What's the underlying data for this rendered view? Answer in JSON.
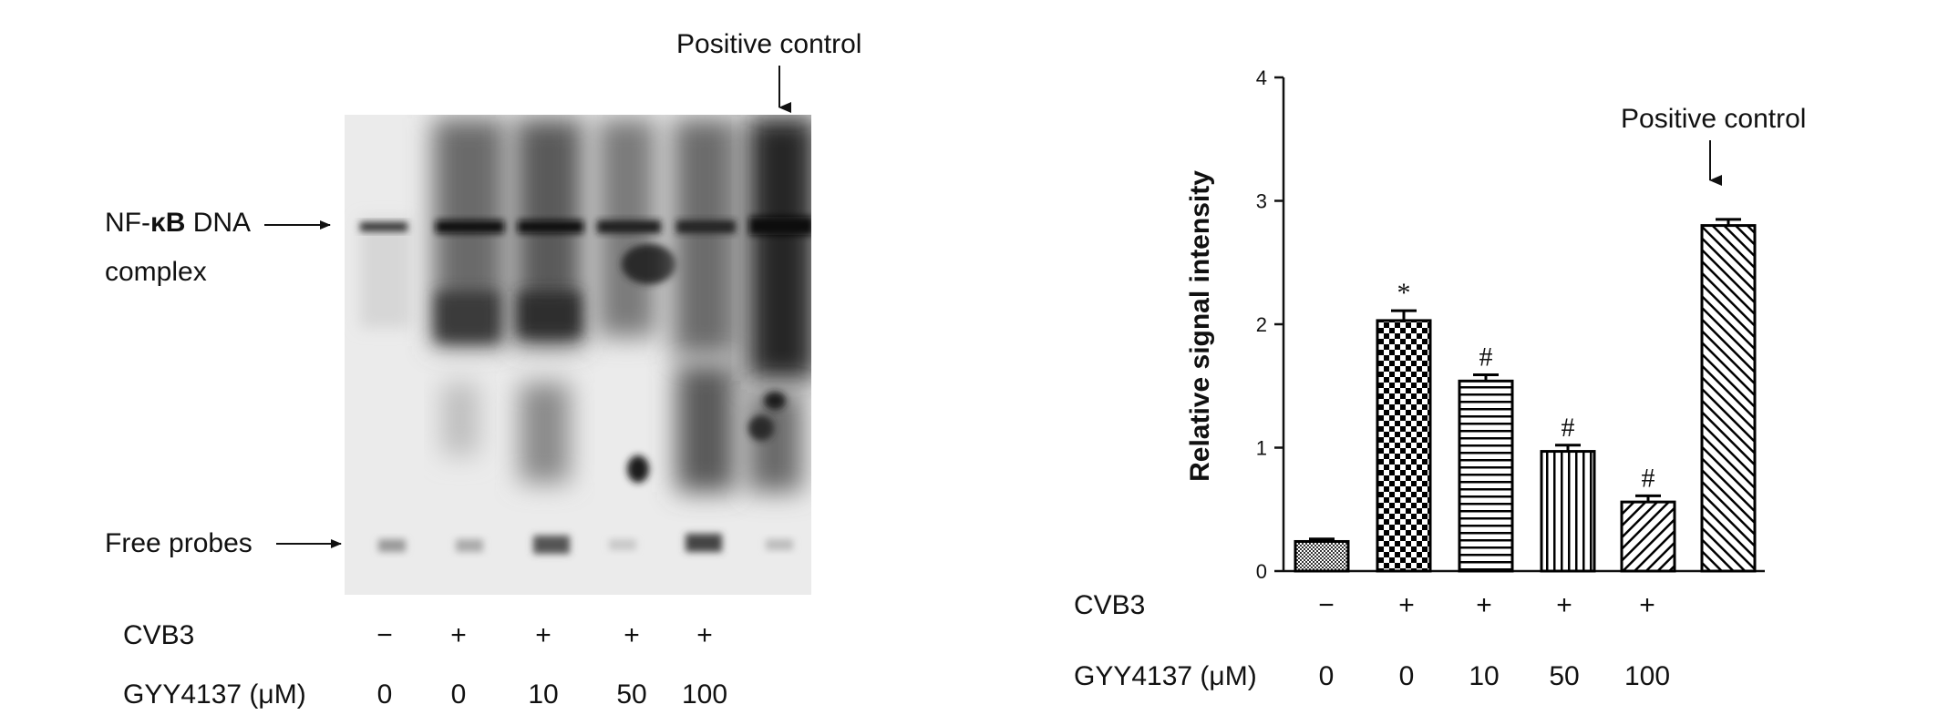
{
  "gel": {
    "positive_control_label": "Positive control",
    "nfkb_label_pre": "NF-",
    "nfkb_label_kappa": "κB",
    "nfkb_label_post": " DNA",
    "complex_label": "complex",
    "free_probes_label": "Free probes",
    "cvb3_label": "CVB3",
    "gyy_label": "GYY4137 (μM)",
    "cvb3_values": [
      "−",
      "+",
      "+",
      "+",
      "+",
      ""
    ],
    "gyy_values": [
      "0",
      "0",
      "10",
      "50",
      "100",
      ""
    ]
  },
  "chart_data": {
    "type": "bar",
    "categories": [
      "0",
      "0",
      "10",
      "50",
      "100",
      "Positive control"
    ],
    "values": [
      0.24,
      2.03,
      1.54,
      0.97,
      0.56,
      2.8
    ],
    "errors": [
      0.02,
      0.08,
      0.05,
      0.05,
      0.05,
      0.05
    ],
    "annotations": [
      "",
      "*",
      "#",
      "#",
      "#",
      ""
    ],
    "patterns": [
      "dense-dots",
      "checker",
      "horizontal",
      "vertical",
      "diagonal",
      "diagonal-back"
    ],
    "ylabel": "Relative signal intensity",
    "xlabel": "",
    "ylim": [
      0,
      4
    ],
    "yticks": [
      "0",
      "1",
      "2",
      "3",
      "4"
    ],
    "cvb3_label": "CVB3",
    "cvb3_values": [
      "−",
      "+",
      "+",
      "+",
      "+",
      ""
    ],
    "gyy_label": "GYY4137 (μM)",
    "gyy_values": [
      "0",
      "0",
      "10",
      "50",
      "100",
      ""
    ],
    "positive_control_label": "Positive control"
  }
}
